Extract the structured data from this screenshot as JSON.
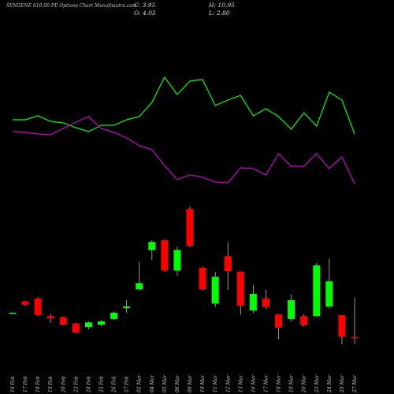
{
  "chart_data": {
    "type": "candlestick",
    "title": "SYNGENE 610.00 PE Options Chart Munafasutra.com",
    "summary": {
      "close": "C: 3.95",
      "high": "H: 10.95",
      "open": "O: 4.05",
      "low": "L: 2.80"
    },
    "categories": [
      "16 Feb",
      "17 Feb",
      "18 Feb",
      "19 Feb",
      "20 Feb",
      "23 Feb",
      "24 Feb",
      "25 Feb",
      "26 Feb",
      "27 Feb",
      "02 Mar",
      "04 Mar",
      "05 Mar",
      "06 Mar",
      "09 Mar",
      "10 Mar",
      "11 Mar",
      "12 Mar",
      "13 Mar",
      "16 Mar",
      "17 Mar",
      "18 Mar",
      "19 Mar",
      "20 Mar",
      "23 Mar",
      "24 Mar",
      "25 Mar",
      "27 Mar"
    ],
    "open": [
      8.3,
      10.3,
      10.8,
      7.7,
      7.5,
      6.4,
      5.8,
      6.2,
      7.2,
      9.1,
      12.4,
      19.3,
      21.0,
      15.7,
      26.5,
      16.2,
      9.9,
      18.2,
      15.5,
      8.7,
      10.8,
      8.0,
      7.2,
      7.7,
      7.7,
      9.4,
      7.9,
      4.05
    ],
    "high": [
      8.3,
      10.4,
      11.0,
      8.1,
      7.6,
      6.5,
      6.8,
      7.0,
      8.5,
      10.5,
      17.3,
      21.0,
      21.2,
      19.9,
      26.9,
      16.4,
      15.5,
      20.7,
      15.5,
      13.1,
      12.3,
      8.0,
      11.5,
      8.0,
      17.0,
      17.8,
      7.9,
      10.95
    ],
    "low": [
      8.3,
      9.5,
      7.7,
      6.5,
      6.1,
      4.7,
      5.4,
      5.9,
      7.0,
      8.3,
      12.2,
      17.5,
      15.5,
      14.8,
      19.8,
      12.2,
      9.3,
      12.3,
      7.9,
      8.3,
      9.0,
      3.7,
      6.8,
      5.9,
      7.7,
      9.0,
      2.8,
      2.8
    ],
    "close": [
      8.3,
      9.7,
      7.9,
      7.3,
      6.2,
      4.8,
      6.6,
      6.8,
      8.3,
      9.4,
      13.5,
      20.7,
      15.7,
      19.3,
      20.0,
      12.4,
      14.6,
      15.6,
      9.5,
      11.6,
      9.3,
      5.7,
      10.5,
      6.1,
      16.6,
      13.8,
      4.1,
      3.95
    ],
    "up_color": "#00ff00",
    "down_color": "#ff0000",
    "lines": [
      {
        "color": "#00ff00",
        "values": [
          98,
          98,
          103,
          96,
          94,
          88,
          83,
          91,
          91,
          98,
          102,
          120,
          152,
          130,
          147,
          149,
          116,
          123,
          129,
          103,
          112,
          102,
          86,
          107,
          90,
          133,
          123,
          80
        ]
      },
      {
        "color": "#cc00cc",
        "values": [
          83,
          82,
          80,
          79,
          87,
          95,
          102,
          87,
          82,
          75,
          65,
          60,
          40,
          22,
          28,
          25,
          19,
          18,
          37,
          36,
          28,
          55,
          39,
          39,
          55,
          36,
          51,
          17
        ]
      }
    ]
  }
}
